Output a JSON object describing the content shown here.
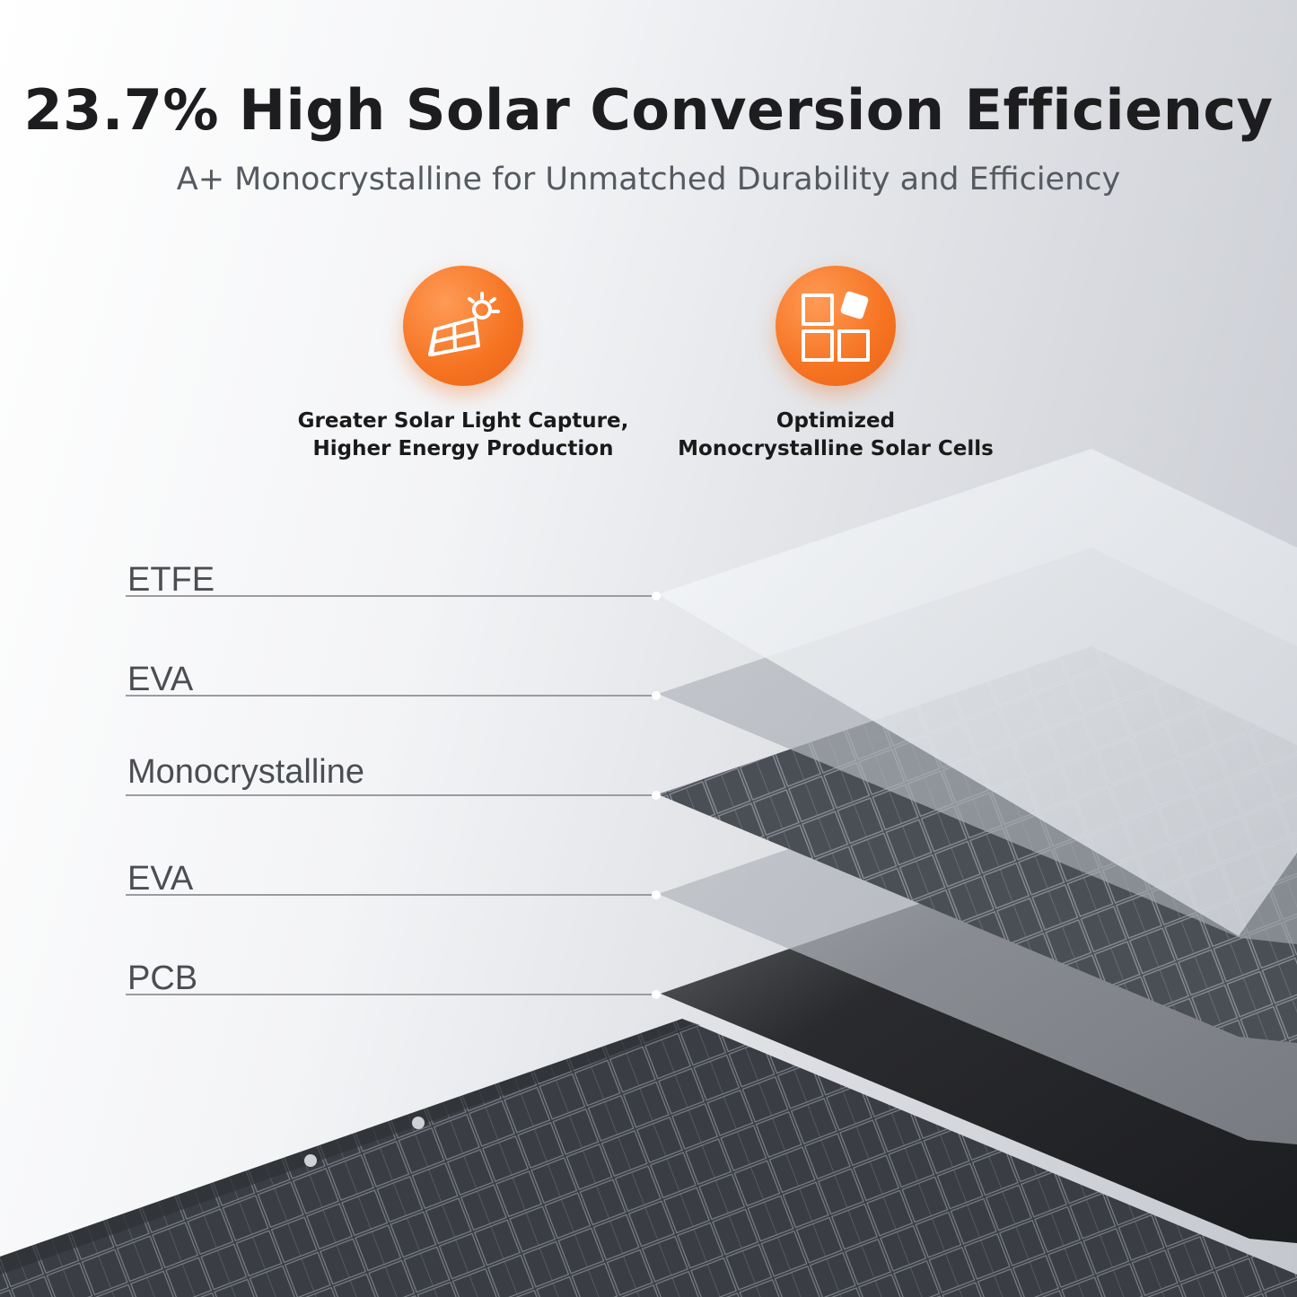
{
  "headline": "23.7% High Solar Conversion Efficiency",
  "subheadline": "A+ Monocrystalline for Unmatched Durability and Efficiency",
  "features": [
    {
      "icon": "solar-panel-sun-icon",
      "line1": "Greater Solar Light Capture,",
      "line2": "Higher Energy Production"
    },
    {
      "icon": "grid-squares-icon",
      "line1": "Optimized",
      "line2": "Monocrystalline Solar Cells"
    }
  ],
  "layers": [
    {
      "label": "ETFE"
    },
    {
      "label": "EVA"
    },
    {
      "label": "Monocrystalline"
    },
    {
      "label": "EVA"
    },
    {
      "label": "PCB"
    }
  ],
  "colors": {
    "accent": "#f57321",
    "text_dark": "#1d1d1f",
    "text_gray": "#555a60",
    "panel_dark": "#2b2d31"
  }
}
